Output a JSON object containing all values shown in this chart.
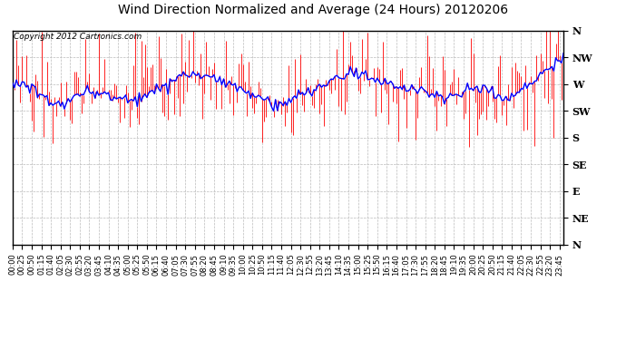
{
  "title": "Wind Direction Normalized and Average (24 Hours) 20120206",
  "copyright_text": "Copyright 2012 Cartronics.com",
  "background_color": "#ffffff",
  "plot_bg_color": "#ffffff",
  "grid_color": "#bbbbbb",
  "bar_color": "#ff0000",
  "avg_line_color": "#0000ff",
  "ytick_labels": [
    "N",
    "NW",
    "W",
    "SW",
    "S",
    "SE",
    "E",
    "NE",
    "N"
  ],
  "ytick_values": [
    360,
    315,
    270,
    225,
    180,
    135,
    90,
    45,
    0
  ],
  "ylim": [
    0,
    360
  ],
  "n_points": 288,
  "xtick_interval": 5,
  "title_fontsize": 10,
  "tick_fontsize": 6,
  "copyright_fontsize": 6.5
}
